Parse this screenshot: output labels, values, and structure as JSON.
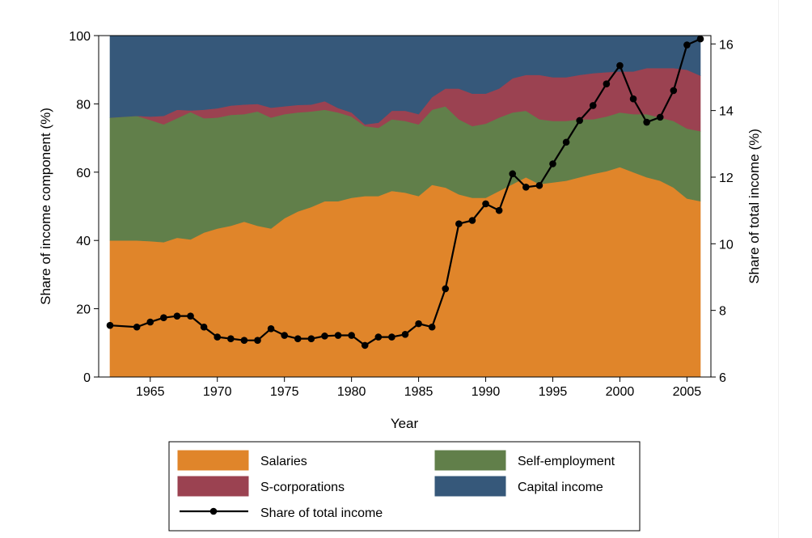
{
  "chart_data": {
    "type": "area",
    "stacked": true,
    "xlabel": "Year",
    "ylabel": "Share of income component (%)",
    "ylabel_right": "Share of total income (%)",
    "xlim": [
      1961.5,
      2006.5
    ],
    "ylim": [
      0,
      100
    ],
    "ylim_right": [
      6,
      16.25
    ],
    "x_ticks": [
      1965,
      1970,
      1975,
      1980,
      1985,
      1990,
      1995,
      2000,
      2005
    ],
    "y_ticks": [
      0,
      20,
      40,
      60,
      80,
      100
    ],
    "y_ticks_right": [
      6,
      8,
      10,
      12,
      14,
      16
    ],
    "x": [
      1962,
      1964,
      1965,
      1966,
      1967,
      1968,
      1969,
      1970,
      1971,
      1972,
      1973,
      1974,
      1975,
      1976,
      1977,
      1978,
      1979,
      1980,
      1981,
      1982,
      1983,
      1984,
      1985,
      1986,
      1987,
      1988,
      1989,
      1990,
      1991,
      1992,
      1993,
      1994,
      1995,
      1996,
      1997,
      1998,
      1999,
      2000,
      2001,
      2002,
      2003,
      2004,
      2005,
      2006
    ],
    "series": [
      {
        "name": "Salaries",
        "color": "#e0852a",
        "values": [
          40,
          40,
          39.8,
          39.5,
          40.8,
          40.3,
          42.3,
          43.5,
          44.3,
          45.5,
          44.3,
          43.5,
          46.5,
          48.5,
          49.8,
          51.5,
          51.5,
          52.5,
          53,
          53,
          54.5,
          54,
          53,
          56.3,
          55.5,
          53.5,
          52.5,
          52.5,
          54.5,
          56.5,
          58.5,
          56.5,
          57,
          57.5,
          58.5,
          59.5,
          60.3,
          61.5,
          60,
          58.5,
          57.5,
          55.5,
          52.3,
          51.5
        ]
      },
      {
        "name": "Self-employment",
        "color": "#617f4a",
        "values": [
          36,
          36.5,
          35.5,
          34.5,
          35,
          37.3,
          33.5,
          32.5,
          32.5,
          31.5,
          33.5,
          32.5,
          30.5,
          29,
          28,
          26.8,
          26,
          23.8,
          20.5,
          20,
          21,
          21,
          21,
          22,
          23.8,
          22,
          21,
          21.7,
          21.5,
          21,
          19.5,
          19,
          18,
          17.5,
          17,
          16,
          16,
          16,
          17,
          18.5,
          18.5,
          19.5,
          20.5,
          20.5
        ]
      },
      {
        "name": "S-corporations",
        "color": "#9b4251",
        "values": [
          0,
          0,
          1,
          2.5,
          2.5,
          0.5,
          2.5,
          2.7,
          2.7,
          2.8,
          2.2,
          2.9,
          2.3,
          2.2,
          2,
          2.5,
          1.3,
          1.2,
          0.5,
          1.5,
          2.5,
          3,
          3,
          3.7,
          5.2,
          9,
          9.5,
          8.8,
          8.5,
          10,
          10.5,
          13,
          12.8,
          12.8,
          13,
          13.5,
          13,
          12,
          12.5,
          13.5,
          14.5,
          15.5,
          17.2,
          16.3
        ]
      },
      {
        "name": "Capital income",
        "color": "#36587a",
        "values": [
          24,
          23.5,
          23.7,
          23.5,
          21.7,
          21.9,
          21.7,
          21.3,
          20.5,
          20.2,
          20,
          21.1,
          20.7,
          20.3,
          20.2,
          19.2,
          21.2,
          22.5,
          26,
          25.5,
          22,
          22,
          23,
          18,
          15.5,
          15.5,
          17,
          17,
          15.5,
          12.5,
          11.5,
          11.5,
          12.2,
          12.2,
          11.5,
          11,
          10.7,
          10.5,
          10.5,
          9.5,
          9.5,
          9.5,
          10,
          11.7
        ]
      }
    ],
    "line_series": {
      "name": "Share of total income",
      "axis": "right",
      "color": "#000000",
      "values": [
        7.55,
        7.5,
        7.65,
        7.78,
        7.83,
        7.83,
        7.5,
        7.2,
        7.15,
        7.1,
        7.1,
        7.45,
        7.25,
        7.15,
        7.15,
        7.23,
        7.25,
        7.25,
        6.95,
        7.2,
        7.2,
        7.28,
        7.6,
        7.5,
        8.65,
        10.6,
        10.7,
        11.2,
        11,
        12.1,
        11.7,
        11.75,
        12.4,
        13.05,
        13.7,
        14.15,
        14.8,
        15.35,
        14.35,
        13.65,
        13.8,
        14.6,
        15.97,
        16.15
      ]
    },
    "legend": {
      "placement": "bottom",
      "items": [
        "Salaries",
        "Self-employment",
        "S-corporations",
        "Capital income",
        "Share of total income"
      ]
    }
  }
}
